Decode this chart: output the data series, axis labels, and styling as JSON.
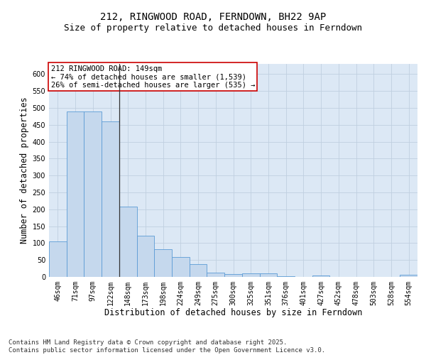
{
  "title_line1": "212, RINGWOOD ROAD, FERNDOWN, BH22 9AP",
  "title_line2": "Size of property relative to detached houses in Ferndown",
  "xlabel": "Distribution of detached houses by size in Ferndown",
  "ylabel": "Number of detached properties",
  "categories": [
    "46sqm",
    "71sqm",
    "97sqm",
    "122sqm",
    "148sqm",
    "173sqm",
    "198sqm",
    "224sqm",
    "249sqm",
    "275sqm",
    "300sqm",
    "325sqm",
    "351sqm",
    "376sqm",
    "401sqm",
    "427sqm",
    "452sqm",
    "478sqm",
    "503sqm",
    "528sqm",
    "554sqm"
  ],
  "values": [
    105,
    490,
    490,
    460,
    207,
    122,
    82,
    58,
    38,
    13,
    8,
    10,
    10,
    3,
    0,
    5,
    0,
    0,
    0,
    0,
    6
  ],
  "bar_color": "#c5d8ed",
  "bar_edge_color": "#5b9bd5",
  "annotation_text": "212 RINGWOOD ROAD: 149sqm\n← 74% of detached houses are smaller (1,539)\n26% of semi-detached houses are larger (535) →",
  "annotation_box_color": "#ffffff",
  "annotation_box_edge": "#cc0000",
  "vline_color": "#333333",
  "grid_color": "#c0cfe0",
  "background_color": "#dce8f5",
  "ylim": [
    0,
    630
  ],
  "yticks": [
    0,
    50,
    100,
    150,
    200,
    250,
    300,
    350,
    400,
    450,
    500,
    550,
    600
  ],
  "footer_text": "Contains HM Land Registry data © Crown copyright and database right 2025.\nContains public sector information licensed under the Open Government Licence v3.0.",
  "title_fontsize": 10,
  "subtitle_fontsize": 9,
  "axis_label_fontsize": 8.5,
  "tick_fontsize": 7,
  "annotation_fontsize": 7.5,
  "footer_fontsize": 6.5
}
